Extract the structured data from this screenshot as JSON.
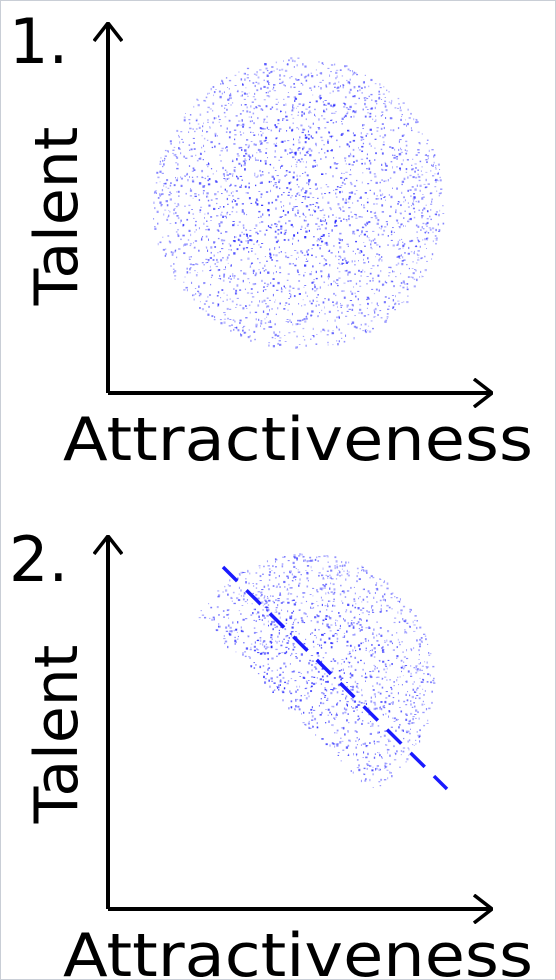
{
  "colors": {
    "points": "#0000ff",
    "axes": "#000000",
    "trend": "#1a1aff",
    "border": "#c9ced6"
  },
  "chart_data": [
    {
      "type": "scatter",
      "panel_label": "1.",
      "xlabel": "Attractiveness",
      "ylabel": "Talent",
      "xlim": [
        -1,
        1
      ],
      "ylim": [
        -1,
        1
      ],
      "grid": false,
      "distribution": {
        "shape": "disc",
        "correlation": 0.0,
        "center": [
          0.0,
          0.0
        ]
      },
      "trend_line": null
    },
    {
      "type": "scatter",
      "panel_label": "2.",
      "xlabel": "Attractiveness",
      "ylabel": "Talent",
      "xlim": [
        -1,
        1
      ],
      "ylim": [
        -1,
        1
      ],
      "grid": false,
      "distribution": {
        "shape": "disc truncated by x + y > threshold",
        "correlation": -0.6,
        "center": [
          0.0,
          0.0
        ]
      },
      "trend_line": {
        "style": "dashed",
        "slope": -1
      }
    }
  ]
}
